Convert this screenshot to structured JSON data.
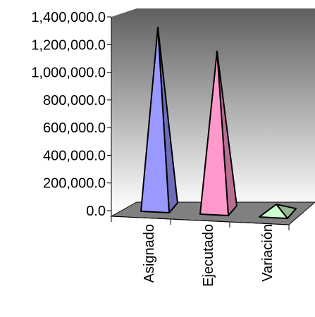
{
  "chart_data": {
    "type": "bar",
    "style": "3d-pyramid",
    "categories": [
      "Asignado",
      "Ejecutado",
      "Variación"
    ],
    "values": [
      1350000,
      1195000,
      30000
    ],
    "ylim": [
      0,
      1400000
    ],
    "yticks": [
      0,
      200000,
      400000,
      600000,
      800000,
      1000000,
      1200000,
      1400000
    ],
    "ytick_labels": [
      "0.0",
      "200,000.0",
      "400,000.0",
      "600,000.0",
      "800,000.0",
      "1,000,000.0",
      "1,200,000.0",
      "1,400,000.0"
    ],
    "title": "",
    "xlabel": "",
    "ylabel": "",
    "grid": false,
    "legend": "none",
    "colors": [
      "#9999ff",
      "#ff99cc",
      "#ccffcc"
    ],
    "wall_color_top": "#5f5f5f",
    "wall_color_bottom": "#ffffff",
    "floor_color": "#808080"
  }
}
